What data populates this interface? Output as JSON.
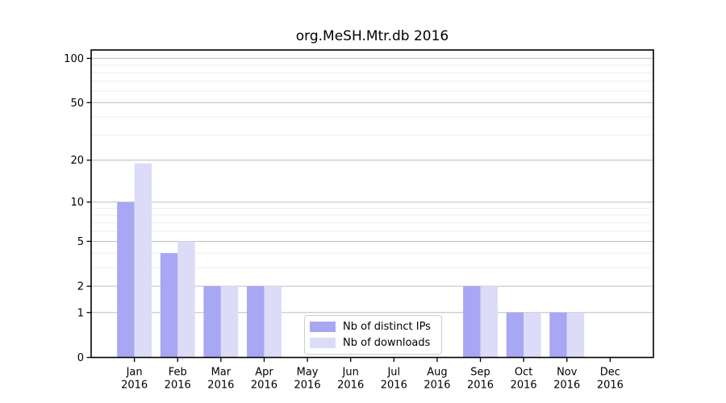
{
  "figure": {
    "background": "#ffffff"
  },
  "chart_data": {
    "type": "bar",
    "title": "org.MeSH.Mtr.db 2016",
    "categories": [
      "Jan",
      "Feb",
      "Mar",
      "Apr",
      "May",
      "Jun",
      "Jul",
      "Aug",
      "Sep",
      "Oct",
      "Nov",
      "Dec"
    ],
    "x_year": "2016",
    "series": [
      {
        "name": "Nb of distinct IPs",
        "color": "#a7a7f3",
        "values": [
          10,
          4,
          2,
          2,
          0,
          0,
          0,
          0,
          2,
          1,
          1,
          0
        ]
      },
      {
        "name": "Nb of downloads",
        "color": "#dcdcf9",
        "values": [
          19,
          5,
          2,
          2,
          0,
          0,
          0,
          0,
          2,
          1,
          1,
          0
        ]
      }
    ],
    "yaxis": {
      "scale": "log10(v+1)",
      "ticks": [
        0,
        1,
        2,
        5,
        10,
        20,
        50,
        100
      ],
      "minor_ticks": [
        3,
        4,
        6,
        7,
        8,
        9,
        30,
        40,
        60,
        70,
        80,
        90
      ],
      "ymax": 114
    },
    "xlabel": "",
    "ylabel": "",
    "legend_position": "lower center",
    "grid": {
      "major_color": "#bdbdbd",
      "minor_color": "#ededed",
      "on": true
    }
  }
}
